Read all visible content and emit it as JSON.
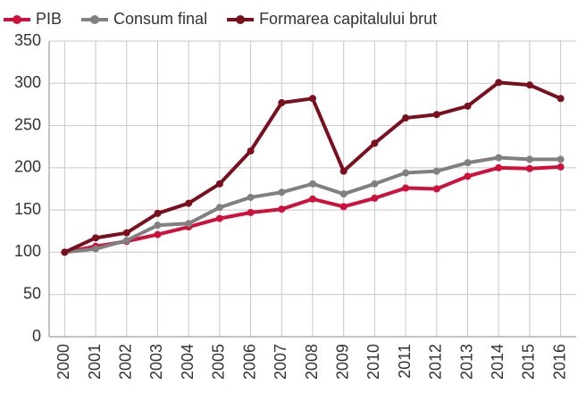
{
  "chart_data": {
    "type": "line",
    "categories": [
      "2000",
      "2001",
      "2002",
      "2003",
      "2004",
      "2005",
      "2006",
      "2007",
      "2008",
      "2009",
      "2010",
      "2011",
      "2012",
      "2013",
      "2014",
      "2015",
      "2016"
    ],
    "series": [
      {
        "name": "PIB",
        "color": "#d0103a",
        "values": [
          100,
          107,
          113,
          121,
          130,
          140,
          147,
          151,
          163,
          154,
          164,
          176,
          175,
          190,
          200,
          199,
          201
        ]
      },
      {
        "name": "Consum final",
        "color": "#808080",
        "values": [
          100,
          104,
          114,
          132,
          134,
          153,
          165,
          171,
          181,
          169,
          181,
          194,
          196,
          206,
          212,
          210,
          210
        ]
      },
      {
        "name": "Formarea capitalului brut",
        "color": "#7b0f1e",
        "values": [
          100,
          117,
          123,
          146,
          158,
          181,
          220,
          277,
          282,
          196,
          229,
          259,
          263,
          273,
          301,
          298,
          282
        ]
      }
    ],
    "ylim": [
      0,
      350
    ],
    "yticks": [
      0,
      50,
      100,
      150,
      200,
      250,
      300,
      350
    ],
    "grid": true
  }
}
